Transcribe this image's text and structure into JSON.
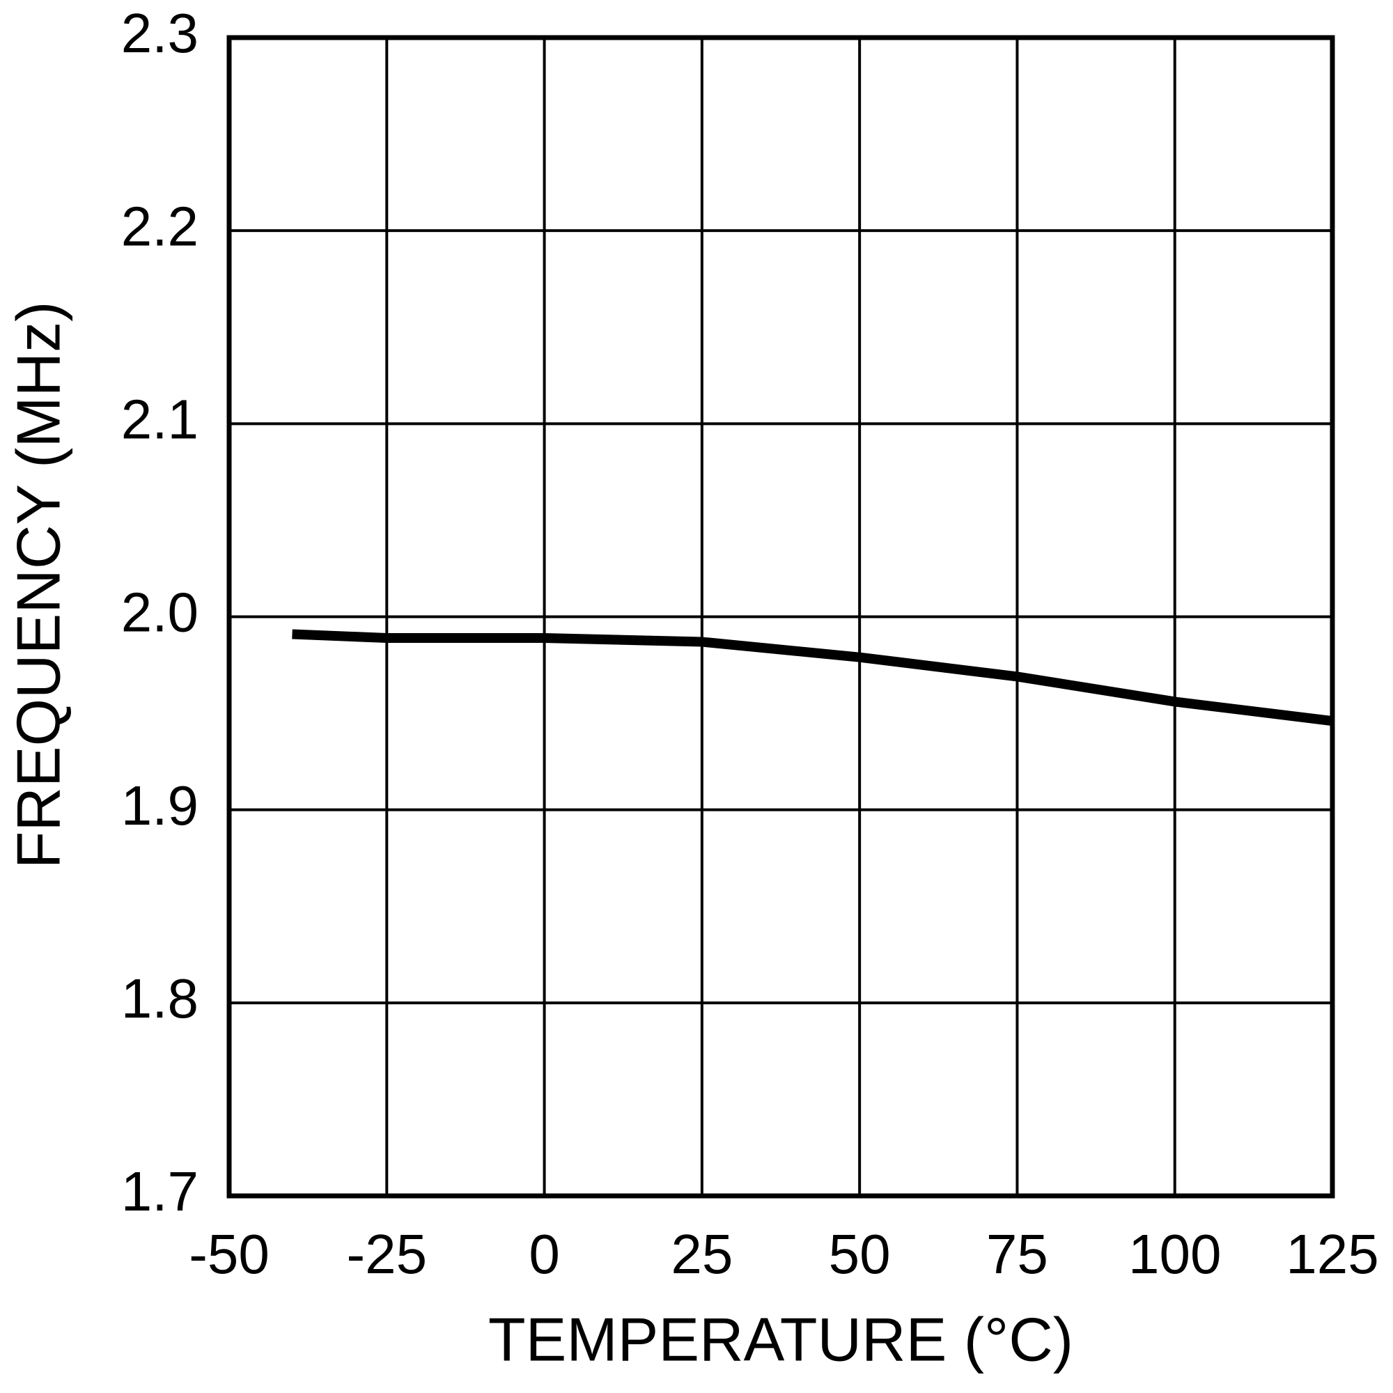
{
  "chart_data": {
    "type": "line",
    "x_label": "TEMPERATURE (°C)",
    "y_label": "FREQUENCY (MHz)",
    "x": [
      -40,
      -25,
      0,
      25,
      50,
      75,
      100,
      125
    ],
    "series": [
      {
        "color": "#000000",
        "values": [
          1.991,
          1.989,
          1.989,
          1.987,
          1.979,
          1.969,
          1.956,
          1.946
        ]
      }
    ],
    "xlim": [
      -50,
      125
    ],
    "xticks": [
      -50,
      -25,
      0,
      25,
      50,
      75,
      100,
      125
    ],
    "ylim": [
      1.7,
      2.3
    ],
    "yticks": [
      1.7,
      1.8,
      1.9,
      {
        "value": 2,
        "label": "2.0"
      },
      2.1,
      2.2,
      2.3
    ],
    "grid": true
  }
}
